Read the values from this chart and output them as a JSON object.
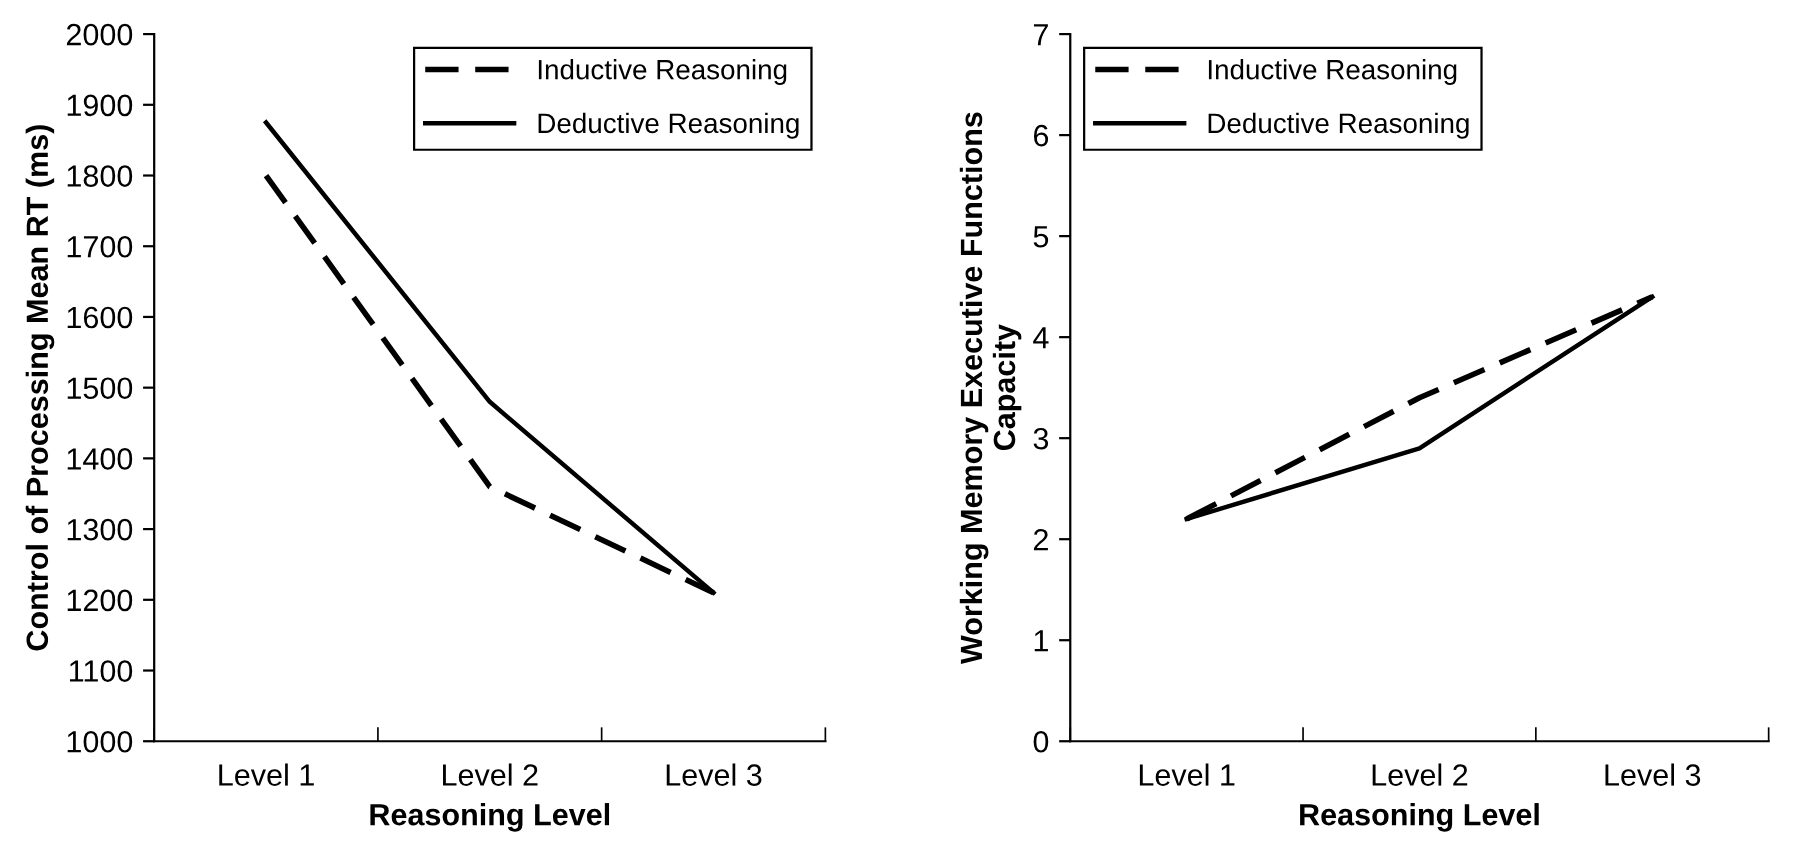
{
  "chart_data": [
    {
      "type": "line",
      "xlabel": "Reasoning Level",
      "ylabel": "Control of Processing Mean RT (ms)",
      "categories": [
        "Level 1",
        "Level 2",
        "Level 3"
      ],
      "series": [
        {
          "name": "Inductive Reasoning",
          "color": "#000000",
          "line_style": "dashed",
          "values": [
            1800,
            1360,
            1210
          ]
        },
        {
          "name": "Deductive Reasoning",
          "color": "#000000",
          "line_style": "solid",
          "values": [
            1875,
            1480,
            1210
          ]
        }
      ],
      "ylim": [
        1000,
        2000
      ],
      "yticks": [
        1000,
        1100,
        1200,
        1300,
        1400,
        1500,
        1600,
        1700,
        1800,
        1900,
        2000
      ],
      "legend": "top right",
      "grid": false,
      "marker": "none"
    },
    {
      "type": "line",
      "xlabel": "Reasoning Level",
      "ylabel": "Working Memory Executive Functions\nCapacity",
      "categories": [
        "Level 1",
        "Level 2",
        "Level 3"
      ],
      "series": [
        {
          "name": "Inductive Reasoning",
          "color": "#000000",
          "line_style": "dashed",
          "values": [
            2.2,
            3.4,
            4.4
          ]
        },
        {
          "name": "Deductive Reasoning",
          "color": "#000000",
          "line_style": "solid",
          "values": [
            2.2,
            2.9,
            4.4
          ]
        }
      ],
      "ylim": [
        0,
        7
      ],
      "yticks": [
        0,
        1,
        2,
        3,
        4,
        5,
        6,
        7
      ],
      "legend": "top left",
      "grid": false,
      "marker": "none"
    }
  ]
}
